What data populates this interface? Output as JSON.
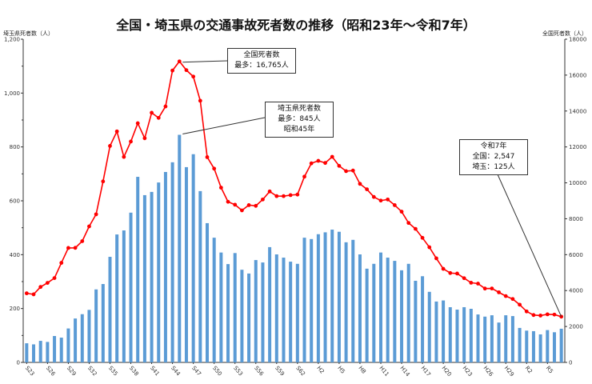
{
  "chart_data": {
    "type": "bar+line",
    "title": "全国・埼玉県の交通事故死者数の推移（昭和23年～令和7年）",
    "ylabel_left": "埼玉県死者数（人）",
    "ylabel_right": "全国死者数（人）",
    "ylim_left": [
      0,
      1200
    ],
    "ylim_right": [
      0,
      18000
    ],
    "yticks_left": [
      "0",
      "200",
      "400",
      "600",
      "800",
      "1,000",
      "1,200"
    ],
    "yticks_right": [
      "0",
      "2000",
      "4000",
      "6000",
      "8000",
      "10000",
      "12000",
      "14000",
      "16000",
      "18000"
    ],
    "x_tick_labels": [
      "S23",
      "S26",
      "S29",
      "S32",
      "S35",
      "S38",
      "S41",
      "S44",
      "S47",
      "S50",
      "S53",
      "S56",
      "S59",
      "S62",
      "H2",
      "H5",
      "H8",
      "H11",
      "H14",
      "H17",
      "H20",
      "H23",
      "H26",
      "H29",
      "R2",
      "R5"
    ],
    "x_start_year": 1948,
    "x_end_year": 2025,
    "series": [
      {
        "type": "bar",
        "axis": "left",
        "color": "#5b9bd5",
        "values": [
          71,
          67,
          80,
          76,
          98,
          92,
          126,
          163,
          179,
          195,
          271,
          291,
          392,
          475,
          490,
          556,
          689,
          621,
          633,
          668,
          707,
          743,
          845,
          725,
          773,
          636,
          517,
          463,
          408,
          365,
          406,
          344,
          330,
          380,
          371,
          428,
          401,
          389,
          374,
          366,
          463,
          458,
          476,
          483,
          493,
          485,
          446,
          455,
          401,
          348,
          366,
          408,
          389,
          377,
          342,
          366,
          303,
          320,
          262,
          226,
          230,
          205,
          196,
          205,
          199,
          178,
          170,
          175,
          148,
          175,
          172,
          128,
          118,
          116,
          104,
          120,
          112,
          125
        ]
      },
      {
        "type": "line",
        "axis": "right",
        "color": "#ff0000",
        "values": [
          3848,
          3790,
          4202,
          4429,
          4696,
          5544,
          6374,
          6379,
          6751,
          7575,
          8248,
          10079,
          12055,
          12865,
          11445,
          12301,
          13318,
          12484,
          13904,
          13618,
          14256,
          16257,
          16765,
          16278,
          15918,
          14574,
          11432,
          10792,
          9734,
          8945,
          8783,
          8466,
          8760,
          8719,
          9073,
          9520,
          9262,
          9261,
          9317,
          9347,
          10344,
          11086,
          11227,
          11109,
          11452,
          10945,
          10653,
          10684,
          9943,
          9642,
          9214,
          9012,
          9073,
          8758,
          8396,
          7768,
          7436,
          6937,
          6415,
          5796,
          5209,
          4979,
          4948,
          4691,
          4438,
          4388,
          4113,
          4117,
          3904,
          3694,
          3532,
          3215,
          2839,
          2636,
          2610,
          2678,
          2663,
          2547
        ]
      }
    ],
    "annotations": [
      {
        "lines": [
          "全国死者数",
          "最多：16,765人"
        ]
      },
      {
        "lines": [
          "埼玉県死者数",
          "最多：845人",
          "昭和45年"
        ]
      },
      {
        "lines": [
          "令和7年",
          "全国：2,547",
          "埼玉：125人"
        ]
      }
    ],
    "grid": false
  }
}
